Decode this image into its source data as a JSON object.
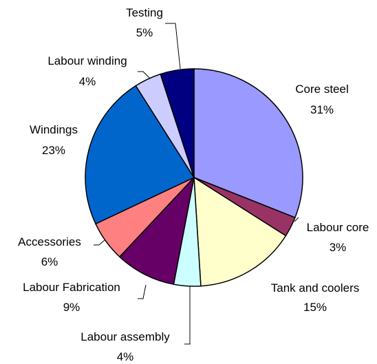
{
  "chart_data": {
    "type": "pie",
    "title": "",
    "legend": "none",
    "slices": [
      {
        "label": "Core steel",
        "value": 31,
        "display": "31%",
        "color": "#9999ff"
      },
      {
        "label": "Labour core",
        "value": 3,
        "display": "3%",
        "color": "#993366"
      },
      {
        "label": "Tank and coolers",
        "value": 15,
        "display": "15%",
        "color": "#ffffcc"
      },
      {
        "label": "Labour assembly",
        "value": 4,
        "display": "4%",
        "color": "#ccffff"
      },
      {
        "label": "Labour Fabrication",
        "value": 9,
        "display": "9%",
        "color": "#660066"
      },
      {
        "label": "Accessories",
        "value": 6,
        "display": "6%",
        "color": "#ff8080"
      },
      {
        "label": "Windings",
        "value": 23,
        "display": "23%",
        "color": "#0066cc"
      },
      {
        "label": "Labour winding",
        "value": 4,
        "display": "4%",
        "color": "#ccccff"
      },
      {
        "label": "Testing",
        "value": 5,
        "display": "5%",
        "color": "#000080"
      }
    ]
  }
}
